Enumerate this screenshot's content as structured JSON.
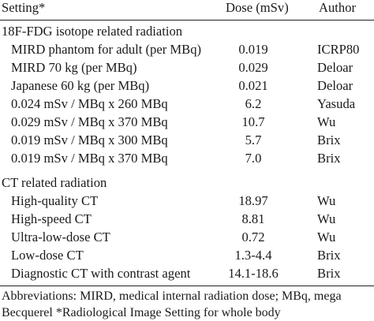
{
  "table": {
    "header": {
      "setting": "Setting*",
      "dose": "Dose (mSv)",
      "author": "Author"
    },
    "sections": [
      {
        "title": "18F-FDG isotope related radiation",
        "rows": [
          {
            "setting": "MIRD phantom for adult (per MBq)",
            "dose": "0.019",
            "author": "ICRP80"
          },
          {
            "setting": "MIRD 70 kg  (per MBq)",
            "dose": "0.029",
            "author": "Deloar"
          },
          {
            "setting": "Japanese 60 kg  (per MBq)",
            "dose": "0.021",
            "author": "Deloar"
          },
          {
            "setting": "0.024 mSv / MBq x 260 MBq",
            "dose": "6.2",
            "author": "Yasuda"
          },
          {
            "setting": "0.029 mSv / MBq x 370 MBq",
            "dose": "10.7",
            "author": "Wu"
          },
          {
            "setting": "0.019 mSv / MBq x 300 MBq",
            "dose": "5.7",
            "author": "Brix"
          },
          {
            "setting": "0.019 mSv / MBq x 370 MBq",
            "dose": "7.0",
            "author": "Brix"
          }
        ]
      },
      {
        "title": "CT related radiation",
        "rows": [
          {
            "setting": "High-quality CT",
            "dose": "18.97",
            "author": "Wu"
          },
          {
            "setting": "High-speed CT",
            "dose": "8.81",
            "author": "Wu"
          },
          {
            "setting": "Ultra-low-dose CT",
            "dose": "0.72",
            "author": "Wu"
          },
          {
            "setting": "Low-dose CT",
            "dose": "1.3-4.4",
            "author": "Brix"
          },
          {
            "setting": "Diagnostic CT with contrast agent",
            "dose": "14.1-18.6",
            "author": "Brix"
          }
        ]
      }
    ]
  },
  "footnote": {
    "line1": "Abbreviations: MIRD, medical internal radiation dose; MBq, mega",
    "line2": "Becquerel *Radiological Image Setting for whole body"
  }
}
